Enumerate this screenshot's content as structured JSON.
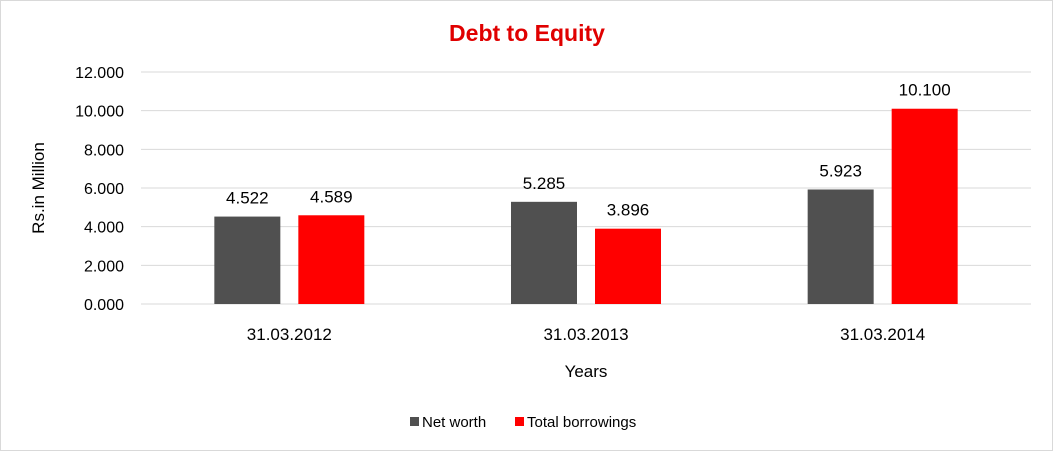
{
  "chart_data": {
    "type": "bar",
    "title": "Debt to Equity",
    "xlabel": "Years",
    "ylabel": "Rs.in Million",
    "categories": [
      "31.03.2012",
      "31.03.2013",
      "31.03.2014"
    ],
    "series": [
      {
        "name": "Net worth",
        "values": [
          4.522,
          5.285,
          5.923
        ],
        "labels": [
          "4.522",
          "5.285",
          "5.923"
        ],
        "color": "#505050"
      },
      {
        "name": "Total borrowings",
        "values": [
          4.589,
          3.896,
          10.1
        ],
        "labels": [
          "4.589",
          "3.896",
          "10.100"
        ],
        "color": "#ff0000"
      }
    ],
    "ylim": [
      0,
      12
    ],
    "yticks": [
      0,
      2,
      4,
      6,
      8,
      10,
      12
    ],
    "ytick_labels": [
      "0.000",
      "2.000",
      "4.000",
      "6.000",
      "8.000",
      "10.000",
      "12.000"
    ],
    "grid": true,
    "legend_position": "bottom",
    "title_color": "#e00000"
  }
}
